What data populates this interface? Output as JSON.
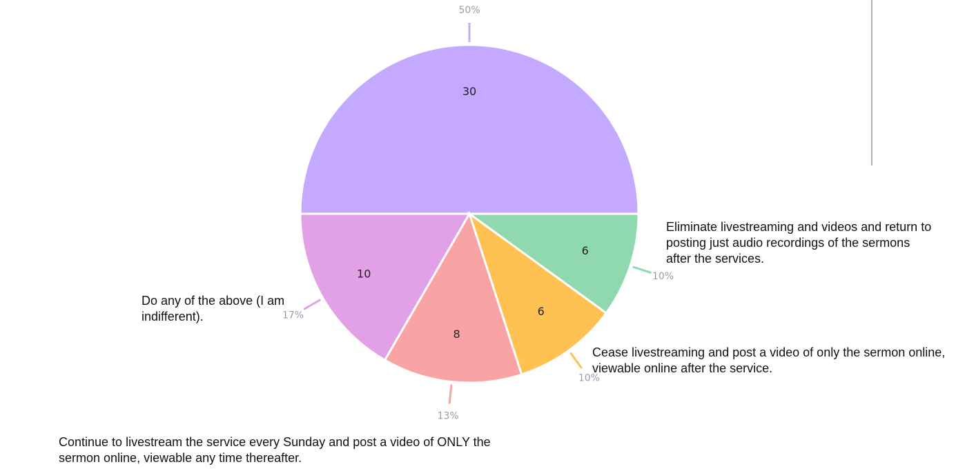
{
  "chart_data": {
    "type": "pie",
    "categories": [
      null,
      "Eliminate livestreaming and videos and return to posting just audio recordings of the sermons after the services.",
      "Cease livestreaming and post a video of only the sermon online, viewable online after the service.",
      "Continue to livestream the service every Sunday and post a video of ONLY the sermon online, viewable any time thereafter.",
      "Do any of the above (I am indifferent)."
    ],
    "values": [
      30,
      6,
      6,
      8,
      10
    ],
    "percent_labels": [
      "50%",
      "10%",
      "10%",
      "13%",
      "17%"
    ],
    "colors": [
      "#c5a8ff",
      "#90d8ad",
      "#ffc152",
      "#f9a3a4",
      "#e2a0e6"
    ]
  }
}
